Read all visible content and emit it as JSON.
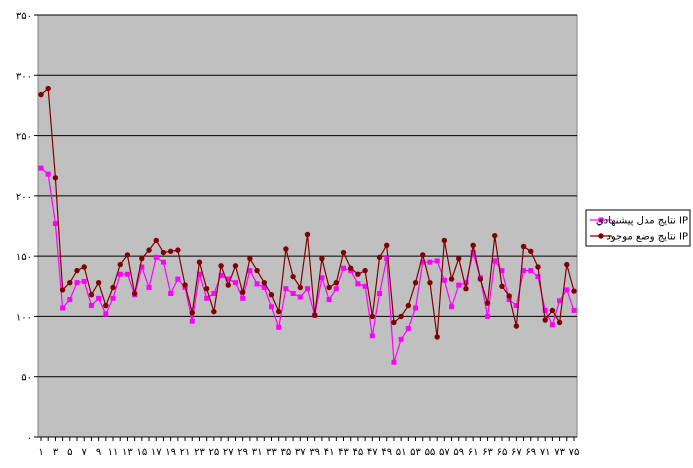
{
  "chart_data": {
    "type": "line",
    "categories": [
      "۱",
      null,
      "۳",
      null,
      "۵",
      null,
      "۷",
      null,
      "۹",
      null,
      "۱۱",
      null,
      "۱۳",
      null,
      "۱۵",
      null,
      "۱۷",
      null,
      "۱۹",
      null,
      "۲۱",
      null,
      "۲۳",
      null,
      "۲۵",
      null,
      "۲۷",
      null,
      "۲۹",
      null,
      "۳۱",
      null,
      "۳۳",
      null,
      "۳۵",
      null,
      "۳۷",
      null,
      "۳۹",
      null,
      "۴۱",
      null,
      "۴۳",
      null,
      "۴۵",
      null,
      "۴۷",
      null,
      "۴۹",
      null,
      "۵۱",
      null,
      "۵۳",
      null,
      "۵۵",
      null,
      "۵۷",
      null,
      "۵۹",
      null,
      "۶۱",
      null,
      "۶۳",
      null,
      "۶۵",
      null,
      "۶۷",
      null,
      "۶۹",
      null,
      "۷۱",
      null,
      "۷۳",
      null,
      "۷۵"
    ],
    "series": [
      {
        "name": "نتایج مدل پیشنهادي IP",
        "color": "#ff00ff",
        "values": [
          223,
          218,
          177,
          107,
          114,
          128,
          129,
          109,
          115,
          102,
          115,
          135,
          135,
          118,
          141,
          124,
          149,
          145,
          119,
          131,
          124,
          96,
          135,
          115,
          119,
          134,
          131,
          128,
          115,
          138,
          127,
          124,
          108,
          91,
          123,
          119,
          116,
          123,
          101,
          132,
          114,
          123,
          140,
          138,
          127,
          125,
          84,
          119,
          148,
          62,
          81,
          90,
          107,
          145,
          145,
          146,
          130,
          108,
          126,
          128,
          153,
          132,
          100,
          146,
          138,
          114,
          109,
          138,
          138,
          133,
          105,
          93,
          113,
          122,
          105
        ]
      },
      {
        "name": "نتایج وضع موجود IP",
        "color": "#800000",
        "values": [
          284,
          289,
          215,
          122,
          128,
          138,
          141,
          118,
          128,
          109,
          124,
          143,
          151,
          119,
          148,
          155,
          163,
          153,
          154,
          155,
          126,
          103,
          145,
          123,
          104,
          142,
          126,
          142,
          120,
          148,
          138,
          128,
          118,
          104,
          156,
          133,
          124,
          168,
          101,
          148,
          124,
          128,
          153,
          140,
          135,
          138,
          100,
          149,
          159,
          95,
          100,
          109,
          128,
          151,
          128,
          83,
          163,
          131,
          148,
          123,
          159,
          131,
          111,
          167,
          125,
          117,
          92,
          158,
          154,
          141,
          97,
          105,
          95,
          143,
          121
        ]
      }
    ],
    "ylim": [
      0,
      350
    ],
    "yticks": [
      {
        "value": 0,
        "label": "۰"
      },
      {
        "value": 50,
        "label": "۵۰"
      },
      {
        "value": 100,
        "label": "۱۰۰"
      },
      {
        "value": 150,
        "label": "۱۵۰"
      },
      {
        "value": 200,
        "label": "۲۰۰"
      },
      {
        "value": 250,
        "label": "۲۵۰"
      },
      {
        "value": 300,
        "label": "۳۰۰"
      },
      {
        "value": 350,
        "label": "۳۵۰"
      }
    ],
    "grid": true,
    "legend": "right"
  }
}
